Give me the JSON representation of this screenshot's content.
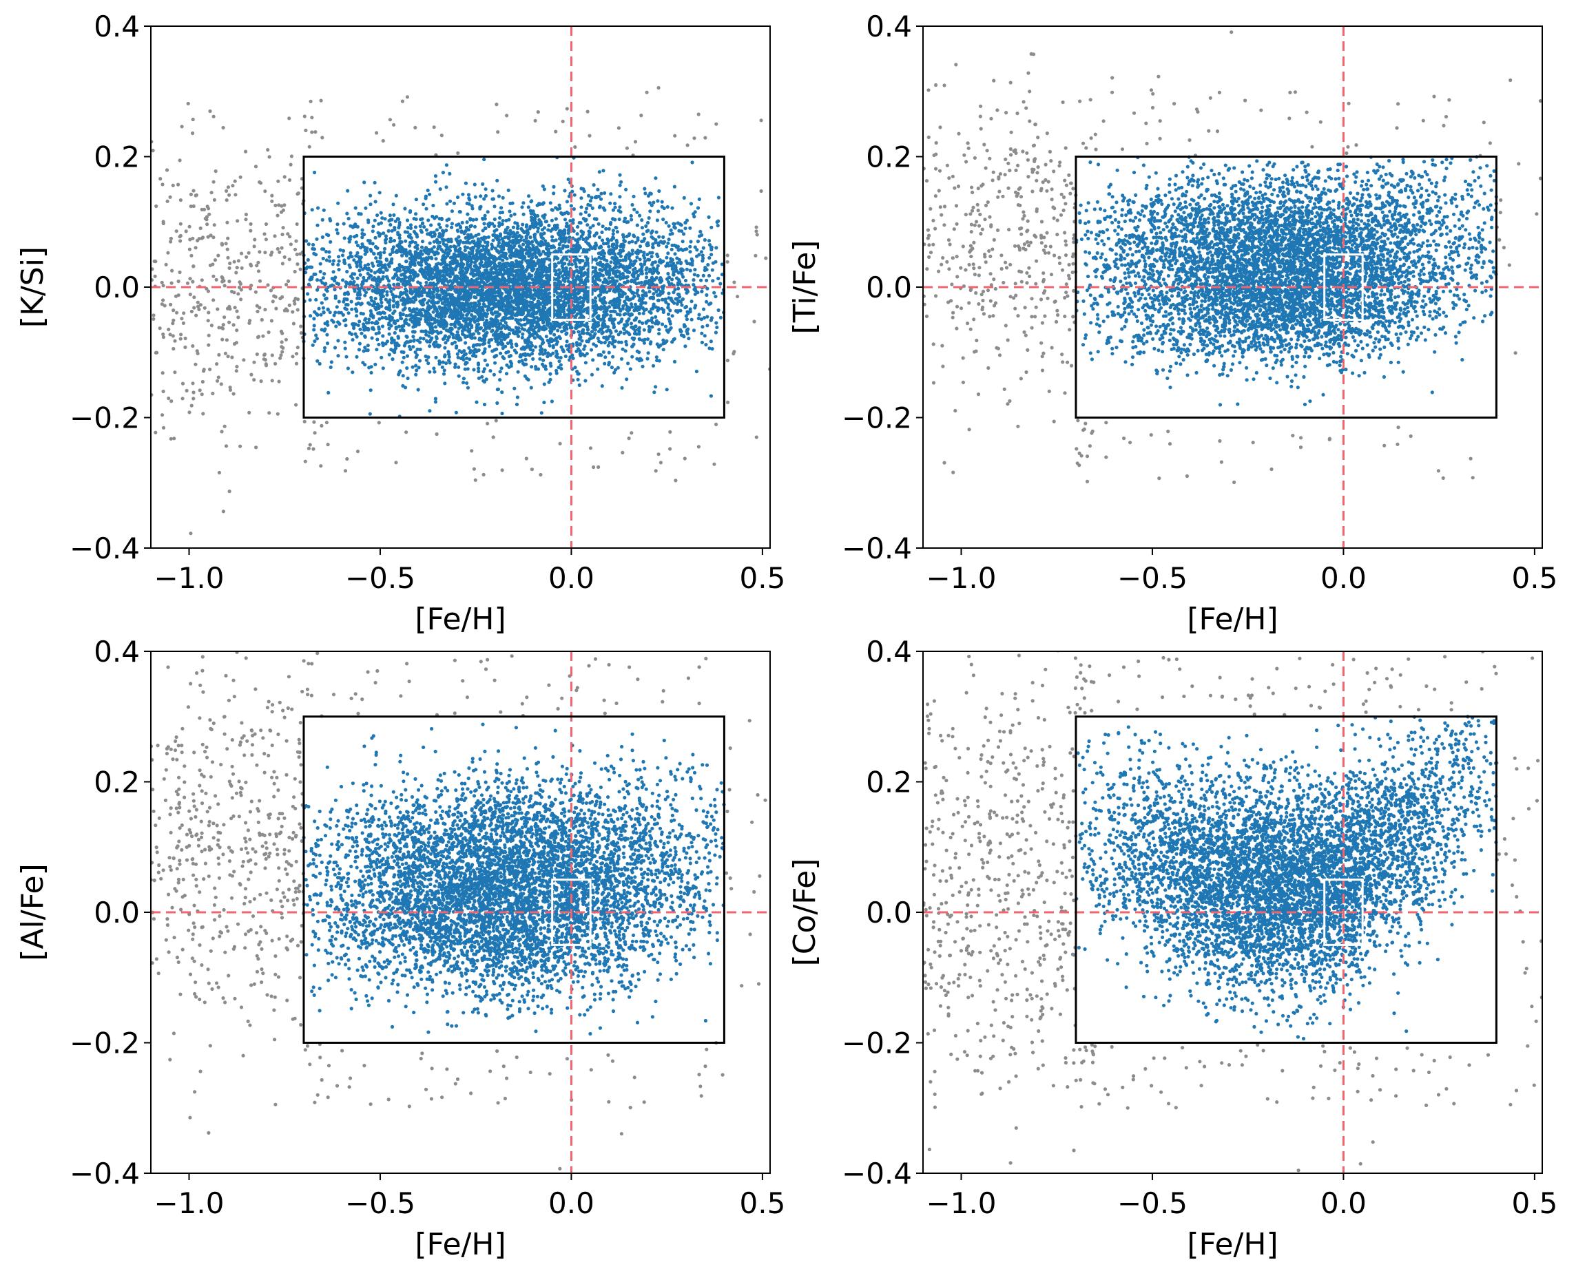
{
  "figure": {
    "background": "#ffffff",
    "colors": {
      "selected_points": "#1f77b4",
      "rejected_points": "#8c8c8c",
      "reference_lines": "#f0646e",
      "selection_box": "#000000",
      "solar_box": "#ffffff"
    }
  },
  "chart_data": [
    {
      "type": "scatter",
      "id": "k_si",
      "title": "",
      "xlabel": "[Fe/H]",
      "ylabel": "[K/Si]",
      "xlim": [
        -1.1,
        0.52
      ],
      "ylim": [
        -0.4,
        0.4
      ],
      "xticks": [
        -1.0,
        -0.5,
        0.0,
        0.5
      ],
      "xtick_labels": [
        "−1.0",
        "−0.5",
        "0.0",
        "0.5"
      ],
      "yticks": [
        -0.4,
        -0.2,
        0.0,
        0.2,
        0.4
      ],
      "ytick_labels": [
        "−0.4",
        "−0.2",
        "0.0",
        "0.2",
        "0.4"
      ],
      "reference_lines": {
        "x": 0.0,
        "y": 0.0,
        "style": "dashed"
      },
      "selection_box": {
        "x": [
          -0.7,
          0.4
        ],
        "y": [
          -0.2,
          0.2
        ]
      },
      "solar_box": {
        "x": [
          -0.05,
          0.05
        ],
        "y": [
          -0.05,
          0.05
        ]
      },
      "series": [
        {
          "name": "selected",
          "shape": "ellipse",
          "x_center": -0.15,
          "x_spread": 0.26,
          "y_center": 0.0,
          "y_spread": 0.06,
          "count": 6000
        },
        {
          "name": "rejected",
          "x_range": [
            -1.1,
            0.52
          ],
          "y_center": 0.0,
          "y_spread": 0.12,
          "count": 500
        }
      ]
    },
    {
      "type": "scatter",
      "id": "ti_fe",
      "title": "",
      "xlabel": "[Fe/H]",
      "ylabel": "[Ti/Fe]",
      "xlim": [
        -1.1,
        0.52
      ],
      "ylim": [
        -0.4,
        0.4
      ],
      "xticks": [
        -1.0,
        -0.5,
        0.0,
        0.5
      ],
      "xtick_labels": [
        "−1.0",
        "−0.5",
        "0.0",
        "0.5"
      ],
      "yticks": [
        -0.4,
        -0.2,
        0.0,
        0.2,
        0.4
      ],
      "ytick_labels": [
        "−0.4",
        "−0.2",
        "0.0",
        "0.2",
        "0.4"
      ],
      "reference_lines": {
        "x": 0.0,
        "y": 0.0,
        "style": "dashed"
      },
      "selection_box": {
        "x": [
          -0.7,
          0.4
        ],
        "y": [
          -0.2,
          0.2
        ]
      },
      "solar_box": {
        "x": [
          -0.05,
          0.05
        ],
        "y": [
          -0.05,
          0.05
        ]
      },
      "series": [
        {
          "name": "selected",
          "shape": "two-sequence",
          "x_center": -0.15,
          "x_spread": 0.25,
          "y_center": 0.02,
          "y_spread": 0.07,
          "count": 6000
        },
        {
          "name": "rejected",
          "x_range": [
            -1.1,
            0.52
          ],
          "y_center": 0.08,
          "y_spread": 0.12,
          "count": 500
        }
      ]
    },
    {
      "type": "scatter",
      "id": "al_fe",
      "title": "",
      "xlabel": "[Fe/H]",
      "ylabel": "[Al/Fe]",
      "xlim": [
        -1.1,
        0.52
      ],
      "ylim": [
        -0.4,
        0.4
      ],
      "xticks": [
        -1.0,
        -0.5,
        0.0,
        0.5
      ],
      "xtick_labels": [
        "−1.0",
        "−0.5",
        "0.0",
        "0.5"
      ],
      "yticks": [
        -0.4,
        -0.2,
        0.0,
        0.2,
        0.4
      ],
      "ytick_labels": [
        "−0.4",
        "−0.2",
        "0.0",
        "0.2",
        "0.4"
      ],
      "reference_lines": {
        "x": 0.0,
        "y": 0.0,
        "style": "dashed"
      },
      "selection_box": {
        "x": [
          -0.7,
          0.4
        ],
        "y": [
          -0.2,
          0.3
        ]
      },
      "solar_box": {
        "x": [
          -0.05,
          0.05
        ],
        "y": [
          -0.05,
          0.05
        ]
      },
      "series": [
        {
          "name": "selected",
          "shape": "two-sequence",
          "x_center": -0.15,
          "x_spread": 0.25,
          "y_center": 0.03,
          "y_spread": 0.09,
          "count": 6000
        },
        {
          "name": "rejected",
          "x_range": [
            -1.1,
            0.52
          ],
          "y_center": 0.1,
          "y_spread": 0.15,
          "count": 600
        }
      ]
    },
    {
      "type": "scatter",
      "id": "co_fe",
      "title": "",
      "xlabel": "[Fe/H]",
      "ylabel": "[Co/Fe]",
      "xlim": [
        -1.1,
        0.52
      ],
      "ylim": [
        -0.4,
        0.4
      ],
      "xticks": [
        -1.0,
        -0.5,
        0.0,
        0.5
      ],
      "xtick_labels": [
        "−1.0",
        "−0.5",
        "0.0",
        "0.5"
      ],
      "yticks": [
        -0.4,
        -0.2,
        0.0,
        0.2,
        0.4
      ],
      "ytick_labels": [
        "−0.4",
        "−0.2",
        "0.0",
        "0.2",
        "0.4"
      ],
      "reference_lines": {
        "x": 0.0,
        "y": 0.0,
        "style": "dashed"
      },
      "selection_box": {
        "x": [
          -0.7,
          0.4
        ],
        "y": [
          -0.2,
          0.3
        ]
      },
      "solar_box": {
        "x": [
          -0.05,
          0.05
        ],
        "y": [
          -0.05,
          0.05
        ]
      },
      "series": [
        {
          "name": "selected",
          "shape": "v-shape",
          "x_center": -0.15,
          "x_spread": 0.25,
          "y_center": 0.04,
          "y_spread": 0.08,
          "count": 6000
        },
        {
          "name": "rejected",
          "x_range": [
            -1.1,
            0.52
          ],
          "y_center": 0.04,
          "y_spread": 0.18,
          "count": 700
        }
      ]
    }
  ]
}
